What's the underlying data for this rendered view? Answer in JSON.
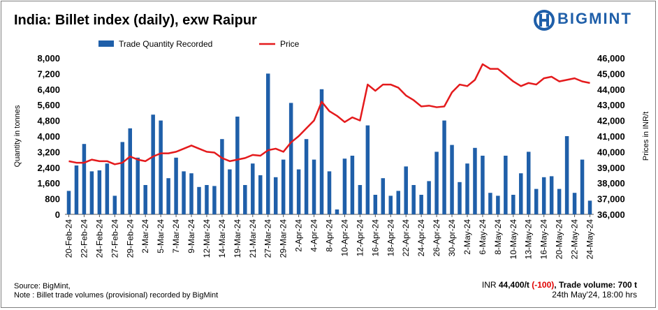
{
  "header": {
    "title": "India: Billet index (daily), exw Raipur",
    "brand": "BIGMINT"
  },
  "footer": {
    "source": "Source: BigMint,",
    "note": "Note : Billet trade volumes (provisional) recorded by BigMint",
    "price_label": "INR ",
    "price_value": "44,400/t",
    "change": "(-100)",
    "volume_label": ", Trade volume: ",
    "volume_value": "700 t",
    "timestamp": "24th May'24, 18:00 hrs"
  },
  "colors": {
    "bar": "#1f5fa9",
    "line": "#e41a1c",
    "brand": "#1f5fa9"
  },
  "chart_data": {
    "type": "bar",
    "title": "India: Billet index (daily), exw Raipur",
    "legend": {
      "placement": "top",
      "entries": [
        "Trade Quantity Recorded",
        "Price"
      ]
    },
    "y_left": {
      "label": "Quantity in tonnes",
      "min": 0,
      "max": 8000,
      "ticks": [
        "0",
        "800",
        "1,600",
        "2,400",
        "3,200",
        "4,000",
        "4,800",
        "5,600",
        "6,400",
        "7,200",
        "8,000"
      ]
    },
    "y_right": {
      "label": "Prices in INR/t",
      "min": 36000,
      "max": 46000,
      "ticks": [
        "36,000",
        "37,000",
        "38,000",
        "39,000",
        "40,000",
        "41,000",
        "42,000",
        "43,000",
        "44,000",
        "45,000",
        "46,000"
      ]
    },
    "x_tick_labels": [
      "20-Feb-24",
      "22-Feb-24",
      "24-Feb-24",
      "27-Feb-24",
      "29-Feb-24",
      "2-Mar-24",
      "5-Mar-24",
      "7-Mar-24",
      "9-Mar-24",
      "12-Mar-24",
      "14-Mar-24",
      "19-Mar-24",
      "21-Mar-24",
      "27-Mar-24",
      "29-Mar-24",
      "2-Apr-24",
      "4-Apr-24",
      "8-Apr-24",
      "10-Apr-24",
      "12-Apr-24",
      "16-Apr-24",
      "18-Apr-24",
      "22-Apr-24",
      "24-Apr-24",
      "26-Apr-24",
      "30-Apr-24",
      "2-May-24",
      "6-May-24",
      "8-May-24",
      "10-May-24",
      "13-May-24",
      "16-May-24",
      "20-May-24",
      "22-May-24",
      "24-May-24"
    ],
    "series": [
      {
        "name": "Trade Quantity Recorded",
        "type": "bar",
        "axis": "left",
        "values": [
          1200,
          2500,
          3600,
          2200,
          2250,
          2600,
          950,
          3700,
          4400,
          2900,
          1500,
          5100,
          4800,
          1850,
          2900,
          2200,
          2100,
          1400,
          1500,
          1450,
          3850,
          2300,
          5000,
          1500,
          2600,
          2000,
          7200,
          1900,
          2800,
          5700,
          2300,
          3850,
          2800,
          6400,
          2200,
          250,
          2850,
          3000,
          1500,
          4550,
          1000,
          1850,
          950,
          1200,
          2450,
          1500,
          1000,
          1700,
          3200,
          4800,
          3550,
          1650,
          2600,
          3400,
          3000,
          1100,
          950,
          3000,
          1000,
          2100,
          3200,
          1300,
          1900,
          1950,
          1300,
          4000,
          1100,
          2800,
          700
        ]
      },
      {
        "name": "Price",
        "type": "line",
        "axis": "right",
        "values": [
          39400,
          39300,
          39300,
          39500,
          39400,
          39400,
          39200,
          39300,
          39700,
          39500,
          39400,
          39700,
          39900,
          39900,
          40000,
          40200,
          40400,
          40200,
          40000,
          39950,
          39600,
          39400,
          39500,
          39600,
          39800,
          39750,
          40100,
          40200,
          40000,
          40600,
          41000,
          41500,
          42000,
          43200,
          42600,
          42300,
          41900,
          42200,
          42000,
          44300,
          43900,
          44300,
          44300,
          44100,
          43600,
          43300,
          42900,
          42950,
          42850,
          42900,
          43800,
          44300,
          44200,
          44600,
          45600,
          45300,
          45300,
          44900,
          44500,
          44200,
          44400,
          44300,
          44700,
          44800,
          44500,
          44600,
          44700,
          44500,
          44400
        ]
      }
    ]
  }
}
